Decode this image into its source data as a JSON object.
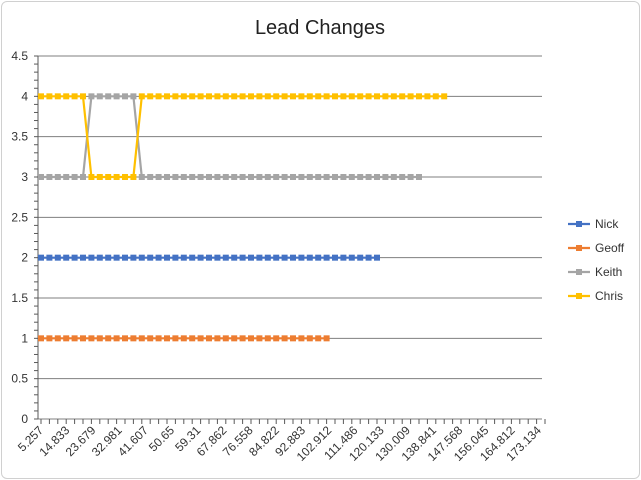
{
  "chart_data": {
    "type": "line",
    "title": "Lead Changes",
    "xlabel": "",
    "ylabel": "",
    "ylim": [
      0,
      4.5
    ],
    "y_ticks": [
      "0",
      "0.5",
      "1",
      "1.5",
      "2",
      "2.5",
      "3",
      "3.5",
      "4",
      "4.5"
    ],
    "x_tick_labels": [
      "5.257",
      "14.833",
      "23.679",
      "32.981",
      "41.607",
      "50.65",
      "59.31",
      "67.862",
      "76.558",
      "84.822",
      "92.883",
      "102.912",
      "111.486",
      "120.133",
      "130.009",
      "138.841",
      "147.568",
      "156.045",
      "164.812",
      "173.134"
    ],
    "grid": true,
    "legend_position": "right",
    "series": [
      {
        "name": "Nick",
        "color": "#4472C4",
        "values": [
          2,
          2,
          2,
          2,
          2,
          2,
          2,
          2,
          2,
          2,
          2,
          2,
          2,
          2,
          2,
          2,
          2,
          2,
          2,
          2,
          2,
          2,
          2,
          2,
          2,
          2,
          2,
          2,
          2,
          2,
          2,
          2,
          2,
          2,
          2,
          2,
          2,
          2,
          2,
          2,
          2
        ]
      },
      {
        "name": "Geoff",
        "color": "#ED7D31",
        "values": [
          1,
          1,
          1,
          1,
          1,
          1,
          1,
          1,
          1,
          1,
          1,
          1,
          1,
          1,
          1,
          1,
          1,
          1,
          1,
          1,
          1,
          1,
          1,
          1,
          1,
          1,
          1,
          1,
          1,
          1,
          1,
          1,
          1,
          1,
          1
        ]
      },
      {
        "name": "Keith",
        "color": "#A5A5A5",
        "values": [
          3,
          3,
          3,
          3,
          3,
          3,
          4,
          4,
          4,
          4,
          4,
          4,
          3,
          3,
          3,
          3,
          3,
          3,
          3,
          3,
          3,
          3,
          3,
          3,
          3,
          3,
          3,
          3,
          3,
          3,
          3,
          3,
          3,
          3,
          3,
          3,
          3,
          3,
          3,
          3,
          3,
          3,
          3,
          3,
          3,
          3
        ]
      },
      {
        "name": "Chris",
        "color": "#FFC000",
        "values": [
          4,
          4,
          4,
          4,
          4,
          4,
          3,
          3,
          3,
          3,
          3,
          3,
          4,
          4,
          4,
          4,
          4,
          4,
          4,
          4,
          4,
          4,
          4,
          4,
          4,
          4,
          4,
          4,
          4,
          4,
          4,
          4,
          4,
          4,
          4,
          4,
          4,
          4,
          4,
          4,
          4,
          4,
          4,
          4,
          4,
          4,
          4,
          4,
          4
        ]
      }
    ]
  }
}
